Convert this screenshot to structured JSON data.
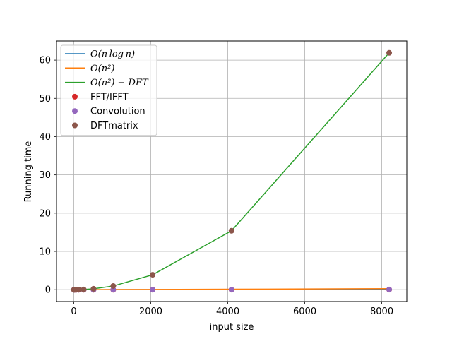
{
  "chart_data": {
    "type": "line",
    "title": "",
    "xlabel": "input size",
    "ylabel": "Running time",
    "xlim": [
      -450,
      8650
    ],
    "ylim": [
      -3.1,
      65
    ],
    "x_ticks": [
      0,
      2000,
      4000,
      6000,
      8000
    ],
    "y_ticks": [
      0,
      10,
      20,
      30,
      40,
      50,
      60
    ],
    "grid": true,
    "legend_position": "top-left",
    "x": [
      4,
      8,
      16,
      32,
      64,
      128,
      256,
      512,
      1024,
      2048,
      4096,
      8192
    ],
    "series": [
      {
        "name": "O(n log n)",
        "label_text": "O(n log n)",
        "kind": "line",
        "color": "#1f77b4",
        "values": [
          0,
          0,
          0,
          0,
          0,
          0,
          0,
          0,
          0.01,
          0.02,
          0.05,
          0.11
        ]
      },
      {
        "name": "O(n^2)",
        "label_text": "O(n²)",
        "kind": "line",
        "color": "#ff7f0e",
        "values": [
          0,
          0,
          0,
          0,
          0,
          0,
          0,
          0.01,
          0.03,
          0.07,
          0.13,
          0.26
        ]
      },
      {
        "name": "O(n^2) - DFT",
        "label_text": "O(n²) − DFT",
        "kind": "line",
        "color": "#2ca02c",
        "values": [
          0,
          0,
          0,
          0,
          0,
          0.01,
          0.06,
          0.24,
          0.97,
          3.9,
          15.4,
          61.9
        ]
      },
      {
        "name": "FFT/IFFT",
        "label_text": "FFT/IFFT",
        "kind": "points",
        "color": "#d62728",
        "values": [
          0,
          0,
          0,
          0,
          0,
          0,
          0,
          0,
          0,
          0,
          0.01,
          0.02
        ]
      },
      {
        "name": "Convolution",
        "label_text": "Convolution",
        "kind": "points",
        "color": "#9467bd",
        "values": [
          0,
          0,
          0,
          0,
          0,
          0,
          0,
          0,
          0.01,
          0.01,
          0.03,
          0.05
        ]
      },
      {
        "name": "DFTmatrix",
        "label_text": "DFTmatrix",
        "kind": "points",
        "color": "#8c564b",
        "values": [
          0,
          0,
          0,
          0,
          0,
          0.01,
          0.06,
          0.24,
          0.97,
          3.9,
          15.4,
          61.9
        ]
      }
    ]
  }
}
